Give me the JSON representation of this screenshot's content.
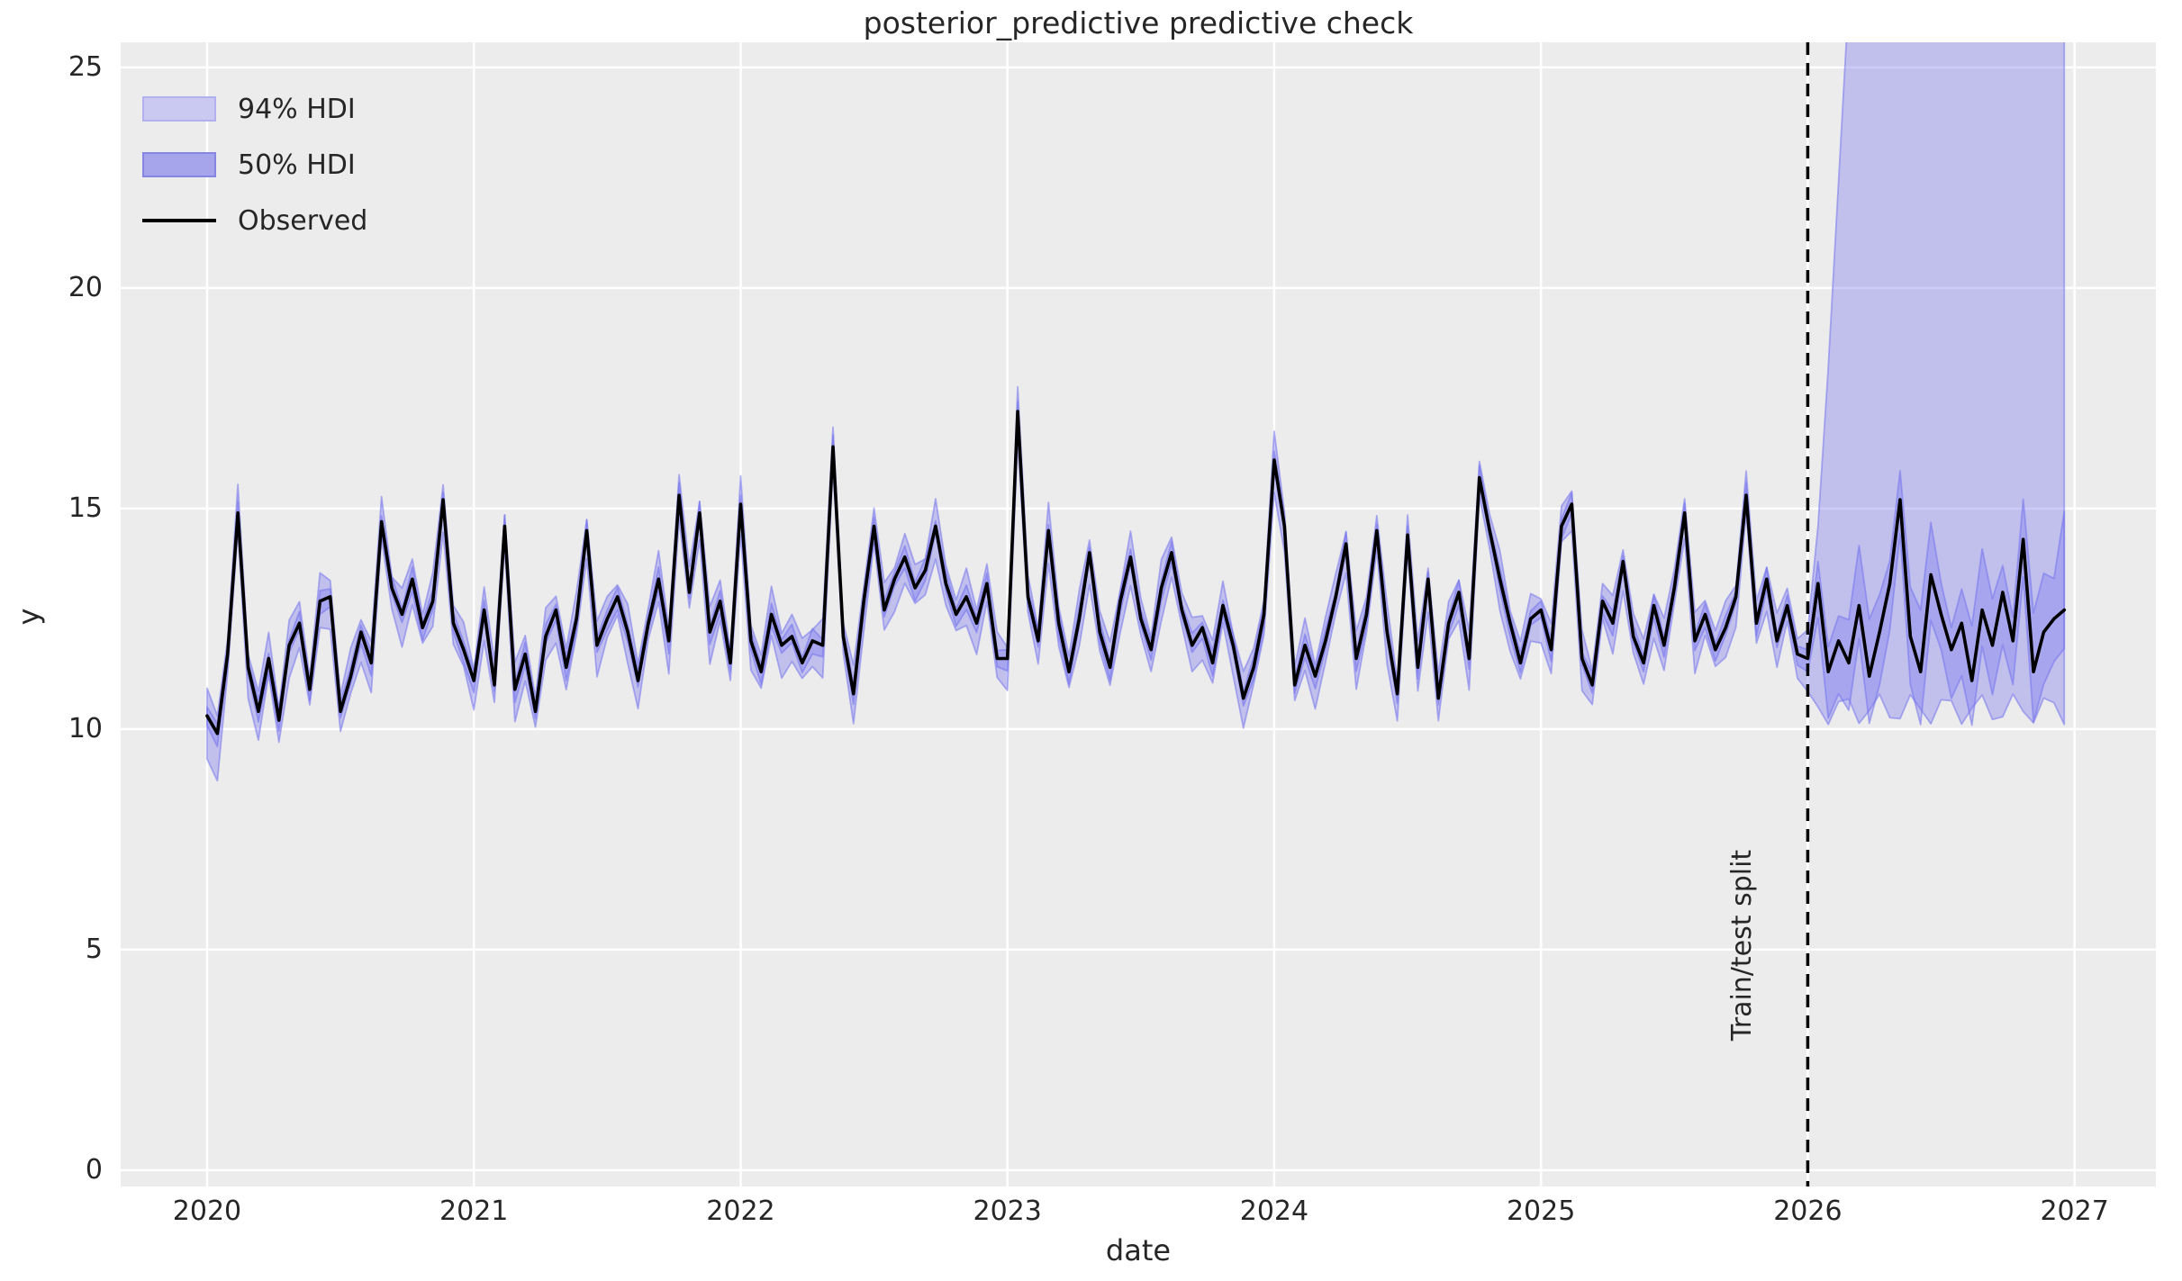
{
  "figure": {
    "title": "posterior_predictive predictive check"
  },
  "axes": {
    "x_label": "date",
    "y_label": "y"
  },
  "annotations": {
    "train_test_split": "Train/test split"
  },
  "legend": {
    "items": [
      {
        "label": "94% HDI",
        "type": "band",
        "fill": "#cac9f1",
        "border": "#b2b0ee"
      },
      {
        "label": "50% HDI",
        "type": "band",
        "fill": "#a6a4ea",
        "border": "#8785e3"
      },
      {
        "label": "Observed",
        "type": "line",
        "color": "#000000"
      }
    ]
  },
  "chart_data": {
    "type": "line",
    "title": "posterior_predictive predictive check",
    "xlabel": "date",
    "ylabel": "y",
    "xlim": [
      2019.676,
      2027.305
    ],
    "ylim": [
      -0.37,
      25.57
    ],
    "xticks": [
      2020,
      2021,
      2022,
      2023,
      2024,
      2025,
      2026,
      2027
    ],
    "yticks": [
      0,
      5,
      10,
      15,
      20,
      25
    ],
    "grid": true,
    "legend_position": "upper left",
    "train_test_split_x": 2026.0,
    "x_start": 2020.0,
    "x_step_years": 0.0384615,
    "series": [
      {
        "name": "Observed",
        "values": [
          10.3,
          9.9,
          11.7,
          14.9,
          11.4,
          10.4,
          11.6,
          10.2,
          11.9,
          12.4,
          10.9,
          12.9,
          13.0,
          10.4,
          11.2,
          12.2,
          11.5,
          14.7,
          13.2,
          12.6,
          13.4,
          12.3,
          12.9,
          15.2,
          12.4,
          11.8,
          11.1,
          12.7,
          11.0,
          14.6,
          10.9,
          11.7,
          10.4,
          12.1,
          12.7,
          11.4,
          12.5,
          14.5,
          11.9,
          12.5,
          13.0,
          12.2,
          11.1,
          12.4,
          13.4,
          12.0,
          15.3,
          13.1,
          14.9,
          12.2,
          12.9,
          11.5,
          15.1,
          12.0,
          11.3,
          12.6,
          11.9,
          12.1,
          11.5,
          12.0,
          11.9,
          16.4,
          12.1,
          10.8,
          12.9,
          14.6,
          12.7,
          13.4,
          13.9,
          13.2,
          13.6,
          14.6,
          13.3,
          12.6,
          13.0,
          12.4,
          13.3,
          11.6,
          11.6,
          17.2,
          13.0,
          12.0,
          14.5,
          12.4,
          11.3,
          12.5,
          14.0,
          12.2,
          11.4,
          12.9,
          13.9,
          12.5,
          11.8,
          13.2,
          14.0,
          12.7,
          11.9,
          12.3,
          11.5,
          12.8,
          11.9,
          10.7,
          11.4,
          12.6,
          16.1,
          14.6,
          11.0,
          11.9,
          11.2,
          12.0,
          13.0,
          14.2,
          11.6,
          12.6,
          14.5,
          12.2,
          10.8,
          14.4,
          11.4,
          13.4,
          10.7,
          12.4,
          13.1,
          11.6,
          15.7,
          14.5,
          13.4,
          12.4,
          11.5,
          12.5,
          12.7,
          11.8,
          14.6,
          15.1,
          11.6,
          11.0,
          12.9,
          12.4,
          13.8,
          12.1,
          11.5,
          12.8,
          11.9,
          13.2,
          14.9,
          12.0,
          12.6,
          11.8,
          12.3,
          13.0,
          15.3,
          12.4,
          13.4,
          12.0,
          12.8,
          11.7,
          11.6,
          13.3,
          11.3,
          12.0,
          11.5,
          12.8,
          11.2,
          12.2,
          13.3,
          15.2,
          12.1,
          11.3,
          13.5,
          12.6,
          11.8,
          12.4,
          11.1,
          12.7,
          11.9,
          13.1,
          12.0,
          14.3,
          11.3,
          12.2,
          12.5,
          12.7
        ]
      }
    ],
    "hdi_bands": {
      "train": {
        "hdi94": {
          "lower_offset": 0.55,
          "upper_offset": 0.45,
          "wobble": 0.2
        },
        "hdi50": {
          "lower_offset": 0.22,
          "upper_offset": 0.2,
          "wobble": 0.08
        }
      },
      "test": {
        "hdi94": {
          "lower_base": 10.45,
          "lower_wobble": 0.35,
          "upper_start": 14.0,
          "upper_ramp_per_step": 4.2,
          "upper_clip": 26.6
        },
        "hdi50": {
          "lower_offset": 0.75,
          "upper_offset": 0.95,
          "wobble": 0.45,
          "final_upper_spike": 1.7
        }
      }
    },
    "colors": {
      "background": "#ececec",
      "grid": "#ffffff",
      "observed": "#000000",
      "band_fill": "rgba(124,122,240,0.38)",
      "band_edge": "rgba(116,114,236,0.55)",
      "split_line": "#000000",
      "text": "#262626"
    }
  }
}
